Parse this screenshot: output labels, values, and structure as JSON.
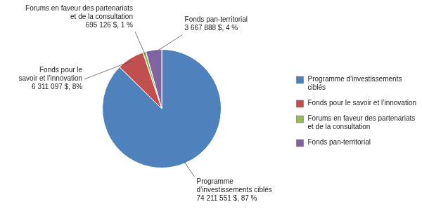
{
  "chart_data": {
    "type": "pie",
    "categories": [
      "Programme d’investissements\nciblés",
      "Fonds pour le savoir et l’innovation",
      "Forums en faveur des partenariats\net de la consultation",
      "Fonds pan-territorial"
    ],
    "values": [
      74211551,
      6311097,
      695126,
      3667888
    ],
    "value_labels": [
      "Programme\nd’investissements ciblés\n74 211 551 $, 87 %",
      "Fonds pour le\nsavoir et l’innovation\n6 311 097 $, 8%",
      "Forums en faveur des partenariats\net de la consultation\n695 126 $, 1 %",
      "Fonds pan-territorial\n3 667 888 $, 4 %"
    ],
    "colors": [
      "#4F81BD",
      "#C0504D",
      "#9BBB59",
      "#8064A2"
    ],
    "data_labels": true,
    "legend": "right"
  }
}
